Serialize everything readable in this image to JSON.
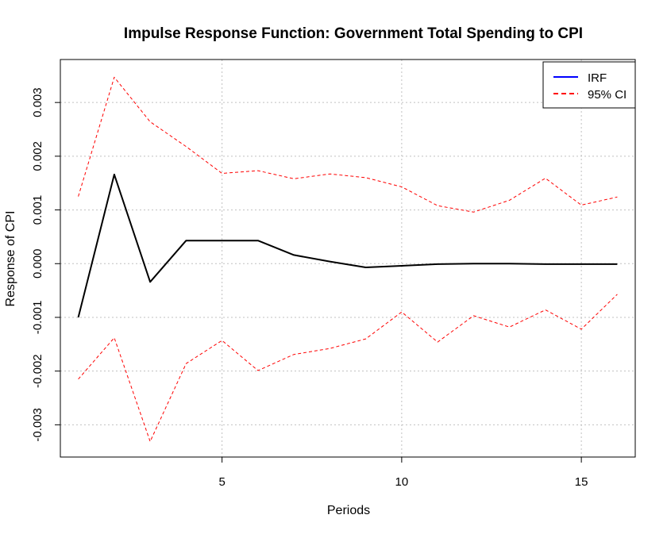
{
  "chart_data": {
    "type": "line",
    "title": "Impulse Response Function: Government Total Spending to CPI",
    "xlabel": "Periods",
    "ylabel": "Response of CPI",
    "xlim": [
      0.5,
      16.5
    ],
    "ylim": [
      -0.0036,
      0.0038
    ],
    "x_ticks": [
      5,
      10,
      15
    ],
    "x_tick_labels": [
      "5",
      "10",
      "15"
    ],
    "y_ticks": [
      -0.003,
      -0.002,
      -0.001,
      0.0,
      0.001,
      0.002,
      0.003
    ],
    "y_tick_labels": [
      "-0.003",
      "-0.002",
      "-0.001",
      "0.000",
      "0.001",
      "0.002",
      "0.003"
    ],
    "grid": true,
    "legend_position": "top-right",
    "x": [
      1,
      2,
      3,
      4,
      5,
      6,
      7,
      8,
      9,
      10,
      11,
      12,
      13,
      14,
      15,
      16
    ],
    "series": [
      {
        "name": "IRF",
        "legend_color": "#0000ff",
        "color": "#000000",
        "style": "solid",
        "values": [
          -0.001,
          0.00166,
          -0.00034,
          0.00043,
          0.00043,
          0.00043,
          0.00016,
          4e-05,
          -7e-05,
          -4e-05,
          -1e-05,
          0.0,
          0.0,
          -1e-05,
          -1e-05,
          -1e-05
        ]
      },
      {
        "name": "95% CI",
        "legend_color": "#ff0000",
        "color": "#ff0000",
        "style": "dashed",
        "values": [
          0.00125,
          0.00347,
          0.00264,
          0.00218,
          0.00168,
          0.00173,
          0.00158,
          0.00167,
          0.0016,
          0.00143,
          0.00108,
          0.00096,
          0.00118,
          0.00159,
          0.00109,
          0.00124
        ]
      },
      {
        "name": "95% CI lower",
        "color": "#ff0000",
        "style": "dashed",
        "values": [
          -0.00215,
          -0.00138,
          -0.00331,
          -0.00186,
          -0.00143,
          -0.00199,
          -0.00169,
          -0.00158,
          -0.0014,
          -0.0009,
          -0.00146,
          -0.00097,
          -0.00118,
          -0.00086,
          -0.00122,
          -0.00057
        ]
      }
    ]
  }
}
